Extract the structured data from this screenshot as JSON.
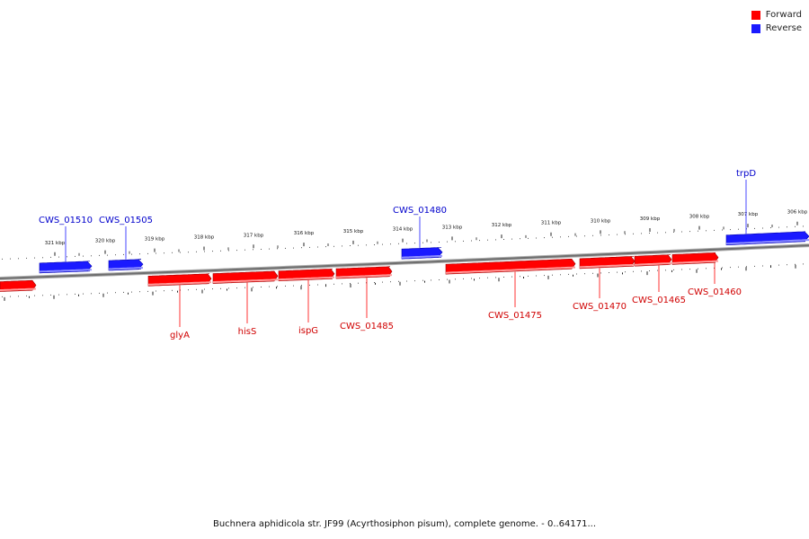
{
  "legend": {
    "forward": {
      "label": "Forward",
      "color": "#ff0000"
    },
    "reverse": {
      "label": "Reverse",
      "color": "#1a1aff"
    }
  },
  "caption": "Buchnera aphidicola str. JF99 (Acyrthosiphon pisum), complete genome. - 0..64171...",
  "scale": {
    "unit": "kbp",
    "upper_ticks": [
      "321 kbp",
      "320 kbp",
      "319 kbp",
      "318 kbp",
      "317 kbp",
      "316 kbp",
      "315 kbp",
      "314 kbp",
      "313 kbp",
      "312 kbp",
      "311 kbp",
      "310 kbp",
      "309 kbp",
      "308 kbp",
      "307 kbp",
      "306 kbp"
    ]
  },
  "genes": [
    {
      "name": "CWS_01510",
      "strand": "reverse"
    },
    {
      "name": "CWS_01505",
      "strand": "reverse"
    },
    {
      "name": "CWS_01480",
      "strand": "reverse"
    },
    {
      "name": "trpD",
      "strand": "reverse"
    },
    {
      "name": "",
      "strand": "forward"
    },
    {
      "name": "glyA",
      "strand": "forward"
    },
    {
      "name": "hisS",
      "strand": "forward"
    },
    {
      "name": "ispG",
      "strand": "forward"
    },
    {
      "name": "CWS_01485",
      "strand": "forward"
    },
    {
      "name": "CWS_01475",
      "strand": "forward"
    },
    {
      "name": "CWS_01470",
      "strand": "forward"
    },
    {
      "name": "CWS_01465",
      "strand": "forward"
    },
    {
      "name": "CWS_01460",
      "strand": "forward"
    }
  ]
}
